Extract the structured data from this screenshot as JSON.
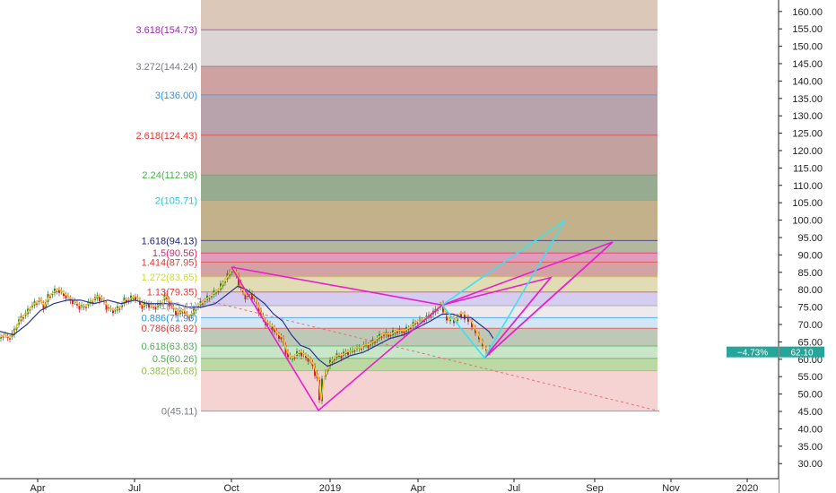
{
  "chart_data": {
    "type": "candlestick",
    "title": "",
    "y_axis": {
      "side": "right",
      "min": 25,
      "max": 165,
      "ticks": [
        "30.00",
        "35.00",
        "40.00",
        "45.00",
        "50.00",
        "55.00",
        "60.00",
        "65.00",
        "70.00",
        "75.00",
        "80.00",
        "85.00",
        "90.00",
        "95.00",
        "100.00",
        "105.00",
        "110.00",
        "115.00",
        "120.00",
        "125.00",
        "130.00",
        "135.00",
        "140.00",
        "145.00",
        "150.00",
        "155.00",
        "160.00"
      ]
    },
    "x_axis": {
      "labels": [
        "Apr",
        "Jul",
        "Oct",
        "2019",
        "Apr",
        "Jul",
        "Sep",
        "Nov",
        "2020"
      ]
    },
    "current_price": {
      "change": "−4.73%",
      "value": "62.10",
      "color": "#26a69a"
    },
    "fib_levels": [
      {
        "label": "3.618(154.73)",
        "value": 154.73,
        "color": "#9c27b0"
      },
      {
        "label": "3.272(144.24)",
        "value": 144.24,
        "color": "#787b86"
      },
      {
        "label": "3(136.00)",
        "value": 136.0,
        "color": "#2196f3"
      },
      {
        "label": "2.618(124.43)",
        "value": 124.43,
        "color": "#e53935"
      },
      {
        "label": "2.24(112.98)",
        "value": 112.98,
        "color": "#4caf50"
      },
      {
        "label": "2(105.71)",
        "value": 105.71,
        "color": "#26c6da"
      },
      {
        "label": "1.618(94.13)",
        "value": 94.13,
        "color": "#1a237e"
      },
      {
        "label": "1.5(90.56)",
        "value": 90.56,
        "color": "#e91e63"
      },
      {
        "label": "1.414(87.95)",
        "value": 87.95,
        "color": "#e53935"
      },
      {
        "label": "1.272(83.65)",
        "value": 83.65,
        "color": "#cddc39"
      },
      {
        "label": "1.13(79.35)",
        "value": 79.35,
        "color": "#e53935"
      },
      {
        "label": "1(75.41)",
        "value": 75.41,
        "color": "#9e9e9e"
      },
      {
        "label": "0.886(71.96)",
        "value": 71.96,
        "color": "#2196f3"
      },
      {
        "label": "0.786(68.92)",
        "value": 68.92,
        "color": "#e53935"
      },
      {
        "label": "0.618(63.83)",
        "value": 63.83,
        "color": "#4caf50"
      },
      {
        "label": "0.5(60.26)",
        "value": 60.26,
        "color": "#4caf50"
      },
      {
        "label": "0.382(56.68)",
        "value": 56.68,
        "color": "#8bc34a"
      },
      {
        "label": "0(45.11)",
        "value": 45.11,
        "color": "#787b86"
      }
    ],
    "fib_bands": [
      {
        "from": 154.73,
        "to": 165,
        "color": "#dcc8b8"
      },
      {
        "from": 144.24,
        "to": 154.73,
        "color": "#dcd5d6"
      },
      {
        "from": 136.0,
        "to": 144.24,
        "color": "#cfa2a2"
      },
      {
        "from": 124.43,
        "to": 136.0,
        "color": "#b8a3ad"
      },
      {
        "from": 112.98,
        "to": 124.43,
        "color": "#c3a19f"
      },
      {
        "from": 105.71,
        "to": 112.98,
        "color": "#97ab91"
      },
      {
        "from": 94.13,
        "to": 105.71,
        "color": "#c2b18a"
      },
      {
        "from": 90.56,
        "to": 94.13,
        "color": "#b3b79e"
      },
      {
        "from": 87.95,
        "to": 90.56,
        "color": "#df9dbd"
      },
      {
        "from": 83.65,
        "to": 87.95,
        "color": "#d3a3a3"
      },
      {
        "from": 79.35,
        "to": 83.65,
        "color": "#e1dcb4"
      },
      {
        "from": 75.41,
        "to": 79.35,
        "color": "#d5cdf0"
      },
      {
        "from": 71.96,
        "to": 75.41,
        "color": "#ede9ed"
      },
      {
        "from": 68.92,
        "to": 71.96,
        "color": "#d3e6f5"
      },
      {
        "from": 63.83,
        "to": 68.92,
        "color": "#bec8b6"
      },
      {
        "from": 60.26,
        "to": 63.83,
        "color": "#c9e6c9"
      },
      {
        "from": 56.68,
        "to": 60.26,
        "color": "#bcd9a3"
      },
      {
        "from": 45.11,
        "to": 56.68,
        "color": "#f6d3d3"
      }
    ],
    "price_path": [
      [
        0,
        66
      ],
      [
        5,
        67
      ],
      [
        10,
        66
      ],
      [
        15,
        67
      ],
      [
        20,
        70
      ],
      [
        25,
        72
      ],
      [
        30,
        73
      ],
      [
        35,
        75
      ],
      [
        40,
        76
      ],
      [
        45,
        77
      ],
      [
        50,
        75
      ],
      [
        55,
        78
      ],
      [
        60,
        79
      ],
      [
        65,
        80
      ],
      [
        70,
        79
      ],
      [
        75,
        78
      ],
      [
        80,
        77
      ],
      [
        85,
        76
      ],
      [
        90,
        75
      ],
      [
        95,
        75
      ],
      [
        100,
        76
      ],
      [
        105,
        77
      ],
      [
        110,
        78
      ],
      [
        115,
        77
      ],
      [
        120,
        75
      ],
      [
        125,
        74
      ],
      [
        130,
        74
      ],
      [
        135,
        75
      ],
      [
        140,
        77
      ],
      [
        145,
        77
      ],
      [
        150,
        78
      ],
      [
        155,
        77
      ],
      [
        160,
        75
      ],
      [
        165,
        76
      ],
      [
        170,
        75
      ],
      [
        175,
        75
      ],
      [
        180,
        76
      ],
      [
        185,
        78
      ],
      [
        190,
        76
      ],
      [
        195,
        74
      ],
      [
        200,
        73
      ],
      [
        205,
        74
      ],
      [
        210,
        72
      ],
      [
        215,
        73
      ],
      [
        220,
        75
      ],
      [
        225,
        76
      ],
      [
        230,
        77
      ],
      [
        235,
        78
      ],
      [
        240,
        79
      ],
      [
        245,
        80
      ],
      [
        250,
        82
      ],
      [
        255,
        84
      ],
      [
        260,
        86
      ],
      [
        265,
        84
      ],
      [
        270,
        80
      ],
      [
        275,
        78
      ],
      [
        280,
        79
      ],
      [
        285,
        77
      ],
      [
        290,
        74
      ],
      [
        295,
        71
      ],
      [
        300,
        70
      ],
      [
        305,
        69
      ],
      [
        310,
        67
      ],
      [
        315,
        66
      ],
      [
        320,
        62
      ],
      [
        325,
        60
      ],
      [
        330,
        61
      ],
      [
        335,
        62
      ],
      [
        340,
        61
      ],
      [
        345,
        60
      ],
      [
        350,
        58
      ],
      [
        355,
        54
      ],
      [
        358,
        48
      ],
      [
        362,
        55
      ],
      [
        367,
        58
      ],
      [
        372,
        60
      ],
      [
        377,
        61
      ],
      [
        382,
        61
      ],
      [
        387,
        62
      ],
      [
        392,
        62
      ],
      [
        397,
        63
      ],
      [
        402,
        63
      ],
      [
        407,
        64
      ],
      [
        412,
        64
      ],
      [
        417,
        65
      ],
      [
        422,
        66
      ],
      [
        427,
        67
      ],
      [
        432,
        67
      ],
      [
        437,
        67
      ],
      [
        442,
        68
      ],
      [
        447,
        68
      ],
      [
        452,
        68
      ],
      [
        457,
        69
      ],
      [
        462,
        70
      ],
      [
        467,
        71
      ],
      [
        472,
        71
      ],
      [
        477,
        72
      ],
      [
        482,
        73
      ],
      [
        487,
        74
      ],
      [
        490,
        75
      ],
      [
        493,
        76
      ],
      [
        497,
        73
      ],
      [
        501,
        71
      ],
      [
        505,
        72
      ],
      [
        509,
        71
      ],
      [
        513,
        73
      ],
      [
        517,
        73
      ],
      [
        521,
        72
      ],
      [
        525,
        71
      ],
      [
        529,
        69
      ],
      [
        533,
        67
      ],
      [
        537,
        65
      ],
      [
        541,
        63
      ],
      [
        545,
        62
      ],
      [
        548,
        63
      ]
    ],
    "ma_path": [
      [
        0,
        68
      ],
      [
        15,
        67
      ],
      [
        30,
        70
      ],
      [
        45,
        74
      ],
      [
        60,
        76
      ],
      [
        75,
        77
      ],
      [
        90,
        77
      ],
      [
        105,
        76
      ],
      [
        120,
        77
      ],
      [
        135,
        76
      ],
      [
        150,
        77
      ],
      [
        165,
        76
      ],
      [
        180,
        76
      ],
      [
        195,
        76
      ],
      [
        210,
        75
      ],
      [
        225,
        75
      ],
      [
        240,
        76
      ],
      [
        255,
        79
      ],
      [
        265,
        81
      ],
      [
        275,
        80
      ],
      [
        285,
        78
      ],
      [
        295,
        76
      ],
      [
        305,
        73
      ],
      [
        315,
        71
      ],
      [
        325,
        67
      ],
      [
        335,
        64
      ],
      [
        345,
        63
      ],
      [
        355,
        60
      ],
      [
        365,
        58
      ],
      [
        375,
        59
      ],
      [
        390,
        61
      ],
      [
        405,
        62
      ],
      [
        420,
        64
      ],
      [
        435,
        66
      ],
      [
        450,
        67
      ],
      [
        465,
        69
      ],
      [
        480,
        71
      ],
      [
        493,
        73
      ],
      [
        505,
        73
      ],
      [
        515,
        72
      ],
      [
        525,
        72
      ],
      [
        535,
        70
      ],
      [
        545,
        68
      ],
      [
        550,
        66
      ]
    ],
    "pattern_lines_magenta": [
      [
        [
          258,
          86.5
        ],
        [
          355,
          45.3
        ],
        [
          493,
          75.6
        ],
        [
          683,
          93.7
        ],
        [
          540,
          60.4
        ],
        [
          614,
          83.5
        ],
        [
          493,
          75.6
        ],
        [
          258,
          86.5
        ]
      ],
      [
        [
          540,
          60.4
        ],
        [
          683,
          93.7
        ]
      ],
      [
        [
          540,
          60.4
        ],
        [
          614,
          83.5
        ]
      ]
    ],
    "pattern_lines_cyan": [
      [
        [
          493,
          75.6
        ],
        [
          540,
          60.4
        ],
        [
          630,
          100.0
        ],
        [
          493,
          75.6
        ]
      ]
    ],
    "trendline": [
      [
        220,
        77.5
      ],
      [
        735,
        45.1
      ]
    ]
  }
}
